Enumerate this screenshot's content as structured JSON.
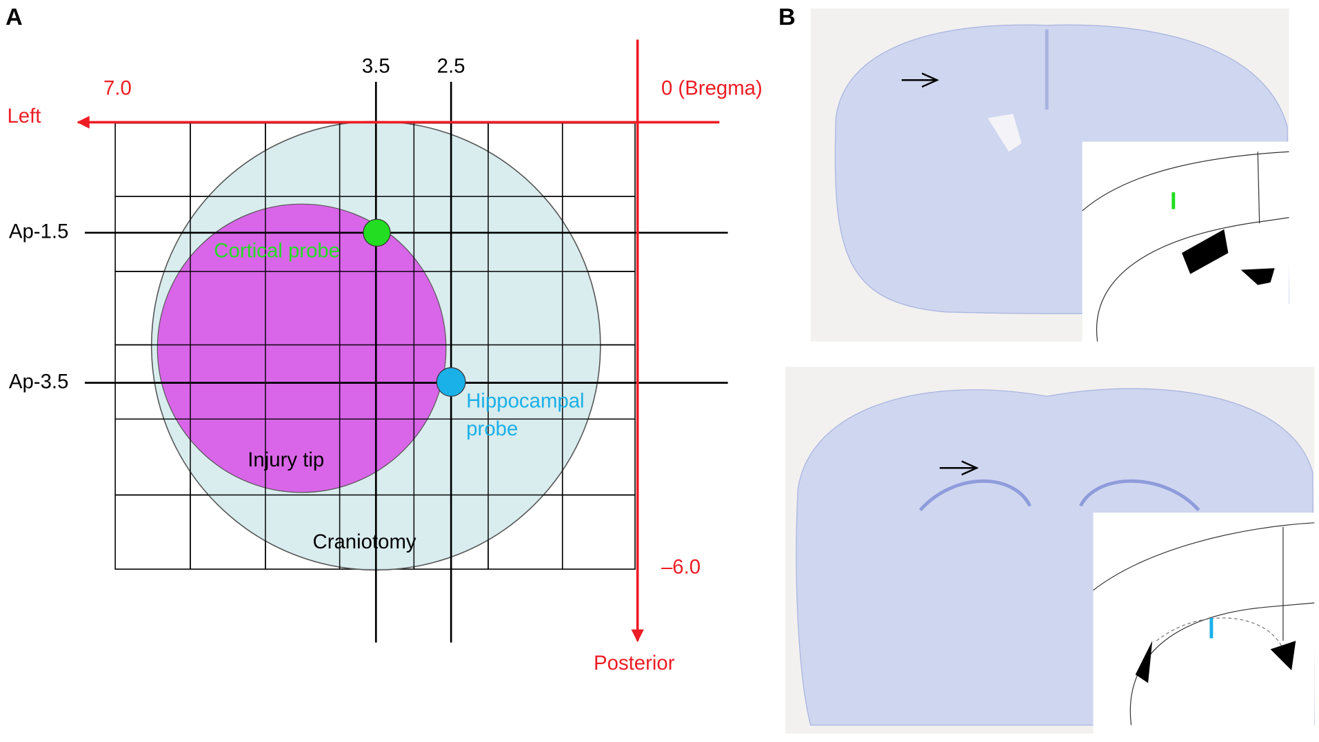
{
  "panels": [
    {
      "label": "A"
    },
    {
      "label": "B"
    }
  ],
  "diagram": {
    "x_ticks": [
      "3.5",
      "2.5"
    ],
    "left_value": "7.0",
    "origin": "0 (Bregma)",
    "left_axis": "Left",
    "ap_labels": [
      "Ap-1.5",
      "Ap-3.5"
    ],
    "posterior_value": "–6.0",
    "posterior_axis": "Posterior",
    "cortical_probe": "Cortical probe",
    "hippocampal_probe": [
      "Hippocampal",
      "probe"
    ],
    "injury_tip": "Injury tip",
    "craniotomy": "Craniotomy"
  }
}
